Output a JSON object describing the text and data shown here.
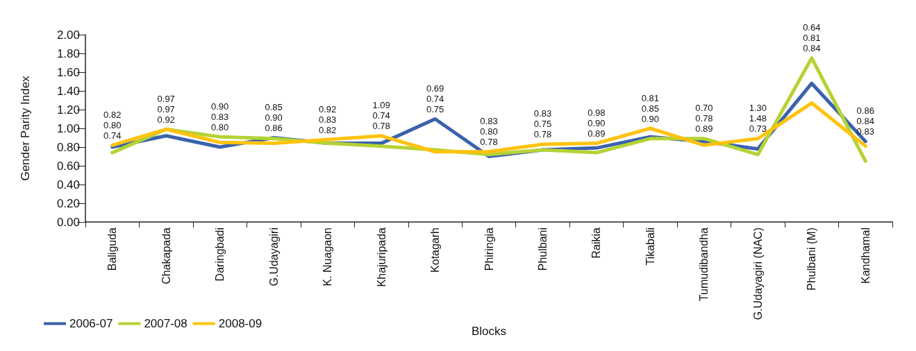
{
  "chart_data": {
    "type": "line",
    "xlabel": "Blocks",
    "ylabel": "Gender Parity Index",
    "categories": [
      "Baliguda",
      "Chakapada",
      "Daringbadi",
      "G.Udayagiri",
      "K. Nuagaon",
      "Khajuripada",
      "Kotagarh",
      "Phiringia",
      "Phulbani",
      "Raikia",
      "Tikabali",
      "Tumudibandha",
      "G.Udayagiri (NAC)",
      "Phulbani (M)",
      "Kandhamal"
    ],
    "series": [
      {
        "name": "2006-07",
        "color": "#3a62ad",
        "values": [
          0.8,
          0.92,
          0.8,
          0.9,
          0.84,
          0.84,
          1.1,
          0.7,
          0.77,
          0.79,
          0.91,
          0.86,
          0.78,
          1.48,
          0.86
        ]
      },
      {
        "name": "2007-08",
        "color": "#b5d334",
        "values": [
          0.74,
          0.99,
          0.91,
          0.89,
          0.84,
          0.81,
          0.77,
          0.72,
          0.77,
          0.74,
          0.89,
          0.89,
          0.72,
          1.75,
          0.65
        ]
      },
      {
        "name": "2008-09",
        "color": "#ffc20e",
        "values": [
          0.82,
          0.99,
          0.85,
          0.84,
          0.88,
          0.92,
          0.75,
          0.75,
          0.83,
          0.84,
          1.0,
          0.82,
          0.89,
          1.27,
          0.81
        ]
      }
    ],
    "annotations": [
      "0.82",
      "0.80",
      "0.74",
      "0.97",
      "0.97",
      "0.92",
      "0.90",
      "0.83",
      "0.80",
      "0.85",
      "0.90",
      "0.86",
      "0.92",
      "0.83",
      "0.82",
      "1.09",
      "0.74",
      "0.78",
      "0.69",
      "0.74",
      "0.75",
      "0.83",
      "0.80",
      "0.78",
      "0.83",
      "0.75",
      "0.78",
      "0.98",
      "0.90",
      "0.89",
      "0.81",
      "0.85",
      "0.90",
      "0.70",
      "0.78",
      "0.89",
      "1.30",
      "1.48",
      "0.73",
      "0.64",
      "0.81",
      "0.84",
      "0.86",
      "0.84",
      "0.83"
    ],
    "ylim": [
      0,
      2
    ],
    "yticks": [
      {
        "value": 0,
        "label": "0.00"
      },
      {
        "value": 0.2,
        "label": "0.20"
      },
      {
        "value": 0.4,
        "label": "0.40"
      },
      {
        "value": 0.6,
        "label": "0.60"
      },
      {
        "value": 0.8,
        "label": "0.80"
      },
      {
        "value": 1,
        "label": "1.00"
      },
      {
        "value": 1.2,
        "label": "1.20"
      },
      {
        "value": 1.4,
        "label": "1.40"
      },
      {
        "value": 1.6,
        "label": "1.60"
      },
      {
        "value": 1.8,
        "label": "1.80"
      },
      {
        "value": 2,
        "label": "2.00"
      }
    ],
    "grid": false,
    "legend": "bottom left",
    "marker": "none",
    "line_style": "solid"
  }
}
